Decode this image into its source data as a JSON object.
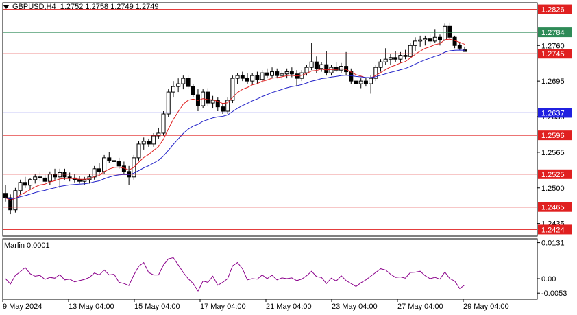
{
  "header": {
    "symbol": "GBPUSD,H4",
    "ohlc": "1.2752 1.2758 1.2749 1.2749"
  },
  "indicator": {
    "label": "Marlin 0.0001"
  },
  "chart_data": {
    "type": "candlestick",
    "price_ticks": [
      "1.2760",
      "1.2695",
      "1.2630",
      "1.2565",
      "1.2500",
      "1.2435"
    ],
    "indicator_ticks": [
      "0.0131",
      "0.00",
      "-0.0053"
    ],
    "level_lines": [
      {
        "value": 1.2826,
        "label": "1.2826",
        "color": "#e02020"
      },
      {
        "value": 1.2784,
        "label": "1.2784",
        "color": "#2e8b57"
      },
      {
        "value": 1.2745,
        "label": "1.2745",
        "color": "#e02020"
      },
      {
        "value": 1.2637,
        "label": "1.2637",
        "color": "#2020e0"
      },
      {
        "value": 1.2596,
        "label": "1.2596",
        "color": "#e02020"
      },
      {
        "value": 1.2525,
        "label": "1.2525",
        "color": "#e02020"
      },
      {
        "value": 1.2465,
        "label": "1.2465",
        "color": "#e02020"
      },
      {
        "value": 1.2424,
        "label": "1.2424",
        "color": "#e02020"
      }
    ],
    "x_labels": [
      "9 May 2024",
      "13 May 04:00",
      "15 May 04:00",
      "17 May 04:00",
      "21 May 04:00",
      "23 May 04:00",
      "27 May 04:00",
      "29 May 04:00"
    ],
    "candles": [
      [
        1.249,
        1.2505,
        1.2475,
        1.2482
      ],
      [
        1.2482,
        1.2488,
        1.2452,
        1.246
      ],
      [
        1.246,
        1.25,
        1.2455,
        1.2495
      ],
      [
        1.2495,
        1.2515,
        1.2488,
        1.251
      ],
      [
        1.251,
        1.252,
        1.25,
        1.2505
      ],
      [
        1.2505,
        1.2518,
        1.2498,
        1.2515
      ],
      [
        1.2515,
        1.2525,
        1.2508,
        1.252
      ],
      [
        1.252,
        1.253,
        1.2512,
        1.2518
      ],
      [
        1.2518,
        1.2524,
        1.2508,
        1.2512
      ],
      [
        1.2512,
        1.253,
        1.2505,
        1.2525
      ],
      [
        1.2525,
        1.2535,
        1.2515,
        1.252
      ],
      [
        1.252,
        1.2535,
        1.25,
        1.2528
      ],
      [
        1.2528,
        1.2535,
        1.2515,
        1.252
      ],
      [
        1.252,
        1.2528,
        1.2512,
        1.2518
      ],
      [
        1.2518,
        1.2525,
        1.251,
        1.2515
      ],
      [
        1.2515,
        1.2522,
        1.2508,
        1.2512
      ],
      [
        1.2512,
        1.252,
        1.2505,
        1.2515
      ],
      [
        1.2515,
        1.2525,
        1.2508,
        1.252
      ],
      [
        1.252,
        1.254,
        1.2515,
        1.2535
      ],
      [
        1.2535,
        1.2545,
        1.2525,
        1.253
      ],
      [
        1.253,
        1.256,
        1.2525,
        1.2555
      ],
      [
        1.2555,
        1.2565,
        1.2545,
        1.255
      ],
      [
        1.255,
        1.256,
        1.254,
        1.2548
      ],
      [
        1.2548,
        1.2555,
        1.2535,
        1.254
      ],
      [
        1.254,
        1.2548,
        1.2525,
        1.253
      ],
      [
        1.253,
        1.254,
        1.2505,
        1.252
      ],
      [
        1.252,
        1.256,
        1.2515,
        1.2555
      ],
      [
        1.2555,
        1.2585,
        1.255,
        1.258
      ],
      [
        1.258,
        1.2592,
        1.257,
        1.2585
      ],
      [
        1.2585,
        1.259,
        1.2575,
        1.258
      ],
      [
        1.258,
        1.26,
        1.2575,
        1.2595
      ],
      [
        1.2595,
        1.261,
        1.259,
        1.26
      ],
      [
        1.26,
        1.264,
        1.2595,
        1.2635
      ],
      [
        1.2635,
        1.268,
        1.263,
        1.2675
      ],
      [
        1.2675,
        1.2695,
        1.2665,
        1.2685
      ],
      [
        1.2685,
        1.27,
        1.2675,
        1.269
      ],
      [
        1.269,
        1.2705,
        1.268,
        1.27
      ],
      [
        1.27,
        1.2705,
        1.268,
        1.2685
      ],
      [
        1.2685,
        1.269,
        1.2665,
        1.267
      ],
      [
        1.267,
        1.268,
        1.264,
        1.265
      ],
      [
        1.265,
        1.268,
        1.2645,
        1.2675
      ],
      [
        1.2675,
        1.2682,
        1.265,
        1.2655
      ],
      [
        1.2655,
        1.2668,
        1.2645,
        1.266
      ],
      [
        1.266,
        1.2665,
        1.264,
        1.2648
      ],
      [
        1.2648,
        1.2655,
        1.2635,
        1.264
      ],
      [
        1.264,
        1.2665,
        1.2635,
        1.266
      ],
      [
        1.266,
        1.2705,
        1.2655,
        1.27
      ],
      [
        1.27,
        1.271,
        1.269,
        1.2705
      ],
      [
        1.2705,
        1.2712,
        1.2695,
        1.27
      ],
      [
        1.27,
        1.271,
        1.269,
        1.2695
      ],
      [
        1.2695,
        1.271,
        1.2688,
        1.2705
      ],
      [
        1.2705,
        1.2712,
        1.269,
        1.2698
      ],
      [
        1.2698,
        1.2715,
        1.2692,
        1.271
      ],
      [
        1.271,
        1.2718,
        1.27,
        1.2705
      ],
      [
        1.2705,
        1.272,
        1.27,
        1.2712
      ],
      [
        1.2712,
        1.2718,
        1.27,
        1.2705
      ],
      [
        1.2705,
        1.2715,
        1.2698,
        1.2708
      ],
      [
        1.2708,
        1.2718,
        1.27,
        1.2712
      ],
      [
        1.2712,
        1.272,
        1.2702,
        1.2708
      ],
      [
        1.2708,
        1.2715,
        1.2685,
        1.27
      ],
      [
        1.27,
        1.2715,
        1.2695,
        1.271
      ],
      [
        1.271,
        1.2725,
        1.2705,
        1.272
      ],
      [
        1.272,
        1.2765,
        1.2715,
        1.273
      ],
      [
        1.273,
        1.274,
        1.271,
        1.2718
      ],
      [
        1.2718,
        1.273,
        1.2712,
        1.2725
      ],
      [
        1.2725,
        1.275,
        1.2705,
        1.271
      ],
      [
        1.271,
        1.2725,
        1.2705,
        1.272
      ],
      [
        1.272,
        1.273,
        1.2712,
        1.2715
      ],
      [
        1.2715,
        1.2728,
        1.271,
        1.2722
      ],
      [
        1.2722,
        1.2748,
        1.2705,
        1.2712
      ],
      [
        1.2712,
        1.2718,
        1.269,
        1.2695
      ],
      [
        1.2695,
        1.2705,
        1.2682,
        1.269
      ],
      [
        1.269,
        1.27,
        1.2682,
        1.2695
      ],
      [
        1.2695,
        1.2702,
        1.2685,
        1.269
      ],
      [
        1.269,
        1.2705,
        1.2672,
        1.27
      ],
      [
        1.27,
        1.2725,
        1.2695,
        1.272
      ],
      [
        1.272,
        1.2735,
        1.2712,
        1.273
      ],
      [
        1.273,
        1.2755,
        1.2725,
        1.2735
      ],
      [
        1.2735,
        1.2745,
        1.2725,
        1.2738
      ],
      [
        1.2738,
        1.275,
        1.273,
        1.2735
      ],
      [
        1.2735,
        1.2748,
        1.2728,
        1.2742
      ],
      [
        1.2742,
        1.2752,
        1.2735,
        1.274
      ],
      [
        1.274,
        1.2765,
        1.2738,
        1.276
      ],
      [
        1.276,
        1.2775,
        1.275,
        1.2768
      ],
      [
        1.2768,
        1.2778,
        1.2758,
        1.277
      ],
      [
        1.277,
        1.2778,
        1.276,
        1.2772
      ],
      [
        1.2772,
        1.278,
        1.2762,
        1.2768
      ],
      [
        1.2768,
        1.279,
        1.2765,
        1.2775
      ],
      [
        1.2775,
        1.278,
        1.276,
        1.277
      ],
      [
        1.277,
        1.28,
        1.2768,
        1.2795
      ],
      [
        1.2795,
        1.2802,
        1.277,
        1.2775
      ],
      [
        1.2775,
        1.2778,
        1.2755,
        1.276
      ],
      [
        1.276,
        1.2765,
        1.2752,
        1.2755
      ],
      [
        1.2752,
        1.2758,
        1.2749,
        1.2749
      ]
    ]
  }
}
